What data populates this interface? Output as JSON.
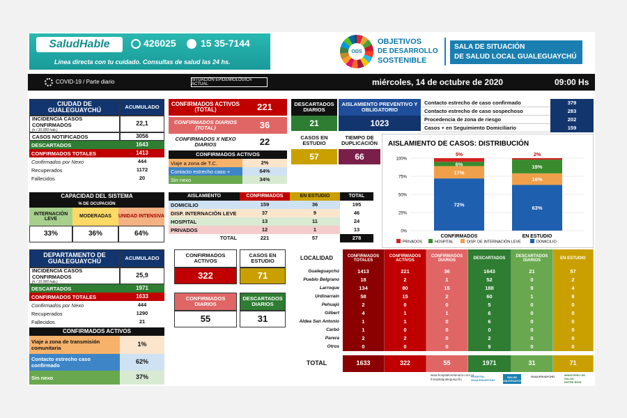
{
  "header": {
    "brand": "SaludHable",
    "phone1": "426025",
    "phone2": "15 35-7144",
    "tagline": "Línea directa con tu cuidado. Consultas de salud las 24 hs.",
    "ods_badge": "ODS",
    "ods_title": [
      "OBJETIVOS",
      "DE DESARROLLO",
      "SOSTENIBLE"
    ],
    "sala": [
      "SALA DE SITUACIÓN",
      "DE SALUD LOCAL GUALEGUAYCHÚ"
    ]
  },
  "bar": {
    "left": "COVID-19 / Parte diario",
    "mid": "SITUACIÓN EPIDEMIOLÓGICA ACTUAL",
    "date": "miércoles, 14 de octubre de 2020",
    "time": "09:00 Hs"
  },
  "city": {
    "title": "CIUDAD DE GUALEGUAYCHÚ",
    "acum": "ACUMULADO",
    "incid_label": "INCIDENCIA CASOS CONFIRMADOS",
    "incid_sub": "(n / 10.000 hab.)",
    "incid": "22,1",
    "notif_label": "CASOS NOTIFICADOS",
    "notif": "3056",
    "desc_label": "DESCARTADOS",
    "desc": "1643",
    "conf_label": "CONFIRMADOS TOTALES",
    "conf": "1413",
    "rows": [
      {
        "label": "Confirmados por Nexo",
        "value": "444"
      },
      {
        "label": "Recuperados",
        "value": "1172"
      },
      {
        "label": "Fallecidos",
        "value": "20"
      }
    ]
  },
  "activos": {
    "label": "CONFIRMADOS ACTIVOS (TOTAL)",
    "value": "221",
    "diarios_label": "CONFIRMADOS DIARIOS (TOTAL)",
    "diarios": "36",
    "nexo_label": "CONFIRMADOS X NEXO DIARIOS",
    "nexo": "22",
    "head": "CONFIRMADOS ACTIVOS",
    "rows": [
      {
        "label": "Viaje a zona de T.C.",
        "value": "2%"
      },
      {
        "label": "Contacto estrecho caso +",
        "value": "64%"
      },
      {
        "label": "Sin nexo",
        "value": "34%"
      }
    ]
  },
  "top_mid": {
    "desc_label": "DESCARTADOS DIARIOS",
    "desc": "21",
    "aisl_label": "AISLAMIENTO PREVENTIVO Y OBLIGATORIO",
    "aisl": "1023",
    "estudio_label": "CASOS EN ESTUDIO",
    "estudio": "57",
    "dup_label": "TIEMPO DE DUPLICACIÓN",
    "dup": "66"
  },
  "contacts": [
    {
      "label": "Contacto estrecho de caso confirmado",
      "value": "379"
    },
    {
      "label": "Contacto estrecho de caso sospechoso",
      "value": "283"
    },
    {
      "label": "Procedencia de zona de riesgo",
      "value": "202"
    },
    {
      "label": "Casos + en Seguimiento Domiciliario",
      "value": "159"
    }
  ],
  "capacity": {
    "title": "CAPACIDAD DEL SISTEMA",
    "sub": "% DE OCUPACIÓN",
    "cols": [
      "INTERNACIÓN LEVE",
      "MODERADAS",
      "UNIDAD INTENSIVA"
    ],
    "values": [
      "33%",
      "36%",
      "64%"
    ]
  },
  "aisl_table": {
    "headers": [
      "AISLAMIENTO",
      "CONFIRMADOS",
      "EN ESTUDIO",
      "TOTAL"
    ],
    "rows": [
      {
        "label": "DOMICILIO",
        "c": "159",
        "e": "36",
        "t": "195"
      },
      {
        "label": "DISP. INTERNACIÓN LEVE",
        "c": "37",
        "e": "9",
        "t": "46"
      },
      {
        "label": "HOSPITAL",
        "c": "13",
        "e": "11",
        "t": "24"
      },
      {
        "label": "PRIVADOS",
        "c": "12",
        "e": "1",
        "t": "13"
      }
    ],
    "total_label": "TOTAL",
    "total": {
      "c": "221",
      "e": "57",
      "t": "278"
    }
  },
  "chart_data": {
    "type": "bar",
    "title": "AISLAMIENTO DE CASOS: DISTRIBUCIÓN",
    "categories": [
      "CONFIRMADOS",
      "EN ESTUDIO"
    ],
    "yticks": [
      "100%",
      "75%",
      "50%",
      "25%",
      "0%"
    ],
    "ylim": [
      0,
      100
    ],
    "series": [
      {
        "name": "DOMICILIO",
        "color": "#1f5fb0",
        "values": [
          72,
          63
        ]
      },
      {
        "name": "DISP. DE INTERNACIÓN LEVE",
        "color": "#f0a04a",
        "values": [
          17,
          16
        ]
      },
      {
        "name": "HOSPITAL",
        "color": "#3a8a2e",
        "values": [
          6,
          19
        ]
      },
      {
        "name": "PRIVADOS",
        "color": "#d42020",
        "values": [
          5,
          2
        ]
      }
    ],
    "labels": [
      [
        "72%",
        "17%",
        "6%",
        "5%"
      ],
      [
        "63%",
        "16%",
        "19%",
        "2%"
      ]
    ],
    "legend": [
      "PRIVADOS",
      "HOSPITAL",
      "DISP. DE INTERNACIÓN LEVE",
      "DOMICILIO"
    ],
    "legend_position": "bottom"
  },
  "dept": {
    "title": "DEPARTAMENTO DE GUALEGUAYCHÚ",
    "acum": "ACUMULADO",
    "incid_label": "INCIDENCIA CASOS CONFIRMADOS",
    "incid_sub": "(n / 10.000 hab.)",
    "incid": "25,9",
    "desc_label": "DESCARTADOS",
    "desc": "1971",
    "conf_label": "CONFIRMADOS TOTALES",
    "conf": "1633",
    "rows": [
      {
        "label": "Confirmados por Nexo",
        "value": "444"
      },
      {
        "label": "Recuperados",
        "value": "1290"
      },
      {
        "label": "Fallecidos",
        "value": "21"
      }
    ],
    "act_head": "CONFIRMADOS ACTIVOS",
    "act_rows": [
      {
        "label": "Viaje a zona de transmisión comunitaria",
        "value": "1%"
      },
      {
        "label": "Contacto estrecho caso confirmado",
        "value": "62%"
      },
      {
        "label": "Sin nexo",
        "value": "37%"
      }
    ]
  },
  "dept_mid": {
    "act_label": "CONFIRMADOS ACTIVOS",
    "act": "322",
    "est_label": "CASOS EN ESTUDIO",
    "est": "71",
    "cd_label": "CONFIRMADOS DIARIOS",
    "cd": "55",
    "dd_label": "DESCARTADOS DIARIOS",
    "dd": "31"
  },
  "localidad": {
    "headers": [
      "LOCALIDAD",
      "CONFIRMADOS TOTALES",
      "CONFIRMADOS ACTIVOS",
      "CONFIRMADOS DIARIOS",
      "DESCARTADOS",
      "DESCARTADOS DIARIOS",
      "EN ESTUDIO"
    ],
    "rows": [
      [
        "Gualeguaychú",
        "1413",
        "221",
        "36",
        "1643",
        "21",
        "57"
      ],
      [
        "Pueblo Belgrano",
        "18",
        "2",
        "1",
        "52",
        "0",
        "2"
      ],
      [
        "Larroque",
        "134",
        "80",
        "15",
        "188",
        "9",
        "4"
      ],
      [
        "Urdinarrain",
        "58",
        "15",
        "2",
        "60",
        "1",
        "8"
      ],
      [
        "Pehuajó",
        "2",
        "0",
        "0",
        "5",
        "0",
        "0"
      ],
      [
        "Gilbert",
        "4",
        "1",
        "1",
        "6",
        "0",
        "0"
      ],
      [
        "Aldea San Antonio",
        "1",
        "1",
        "0",
        "6",
        "0",
        "0"
      ],
      [
        "Carbó",
        "1",
        "0",
        "0",
        "0",
        "0",
        "0"
      ],
      [
        "Parera",
        "2",
        "2",
        "0",
        "2",
        "0",
        "0"
      ],
      [
        "Otros",
        "0",
        "0",
        "0",
        "9",
        "0",
        "0"
      ]
    ],
    "total": [
      "TOTAL",
      "1633",
      "322",
      "55",
      "1971",
      "31",
      "71"
    ]
  },
  "footer": {
    "web": "www.hospitalcentenario.com.ar",
    "fb": "/hospitalgualeguaychu",
    "l1": "HOSPITAL GUALEGUAYCHU",
    "l2": "SALUD GUALEGUAYCHÚ",
    "l3": "GUALEGUAYCHÚ",
    "l4": "MINISTERIO DE SALUD",
    "l5": "ENTRE RÍOS"
  },
  "colors": {
    "blue": "#1f4e9a",
    "red": "#c00000",
    "green": "#2e7d32",
    "gold": "#c9a000",
    "purple": "#7a1f4a"
  }
}
